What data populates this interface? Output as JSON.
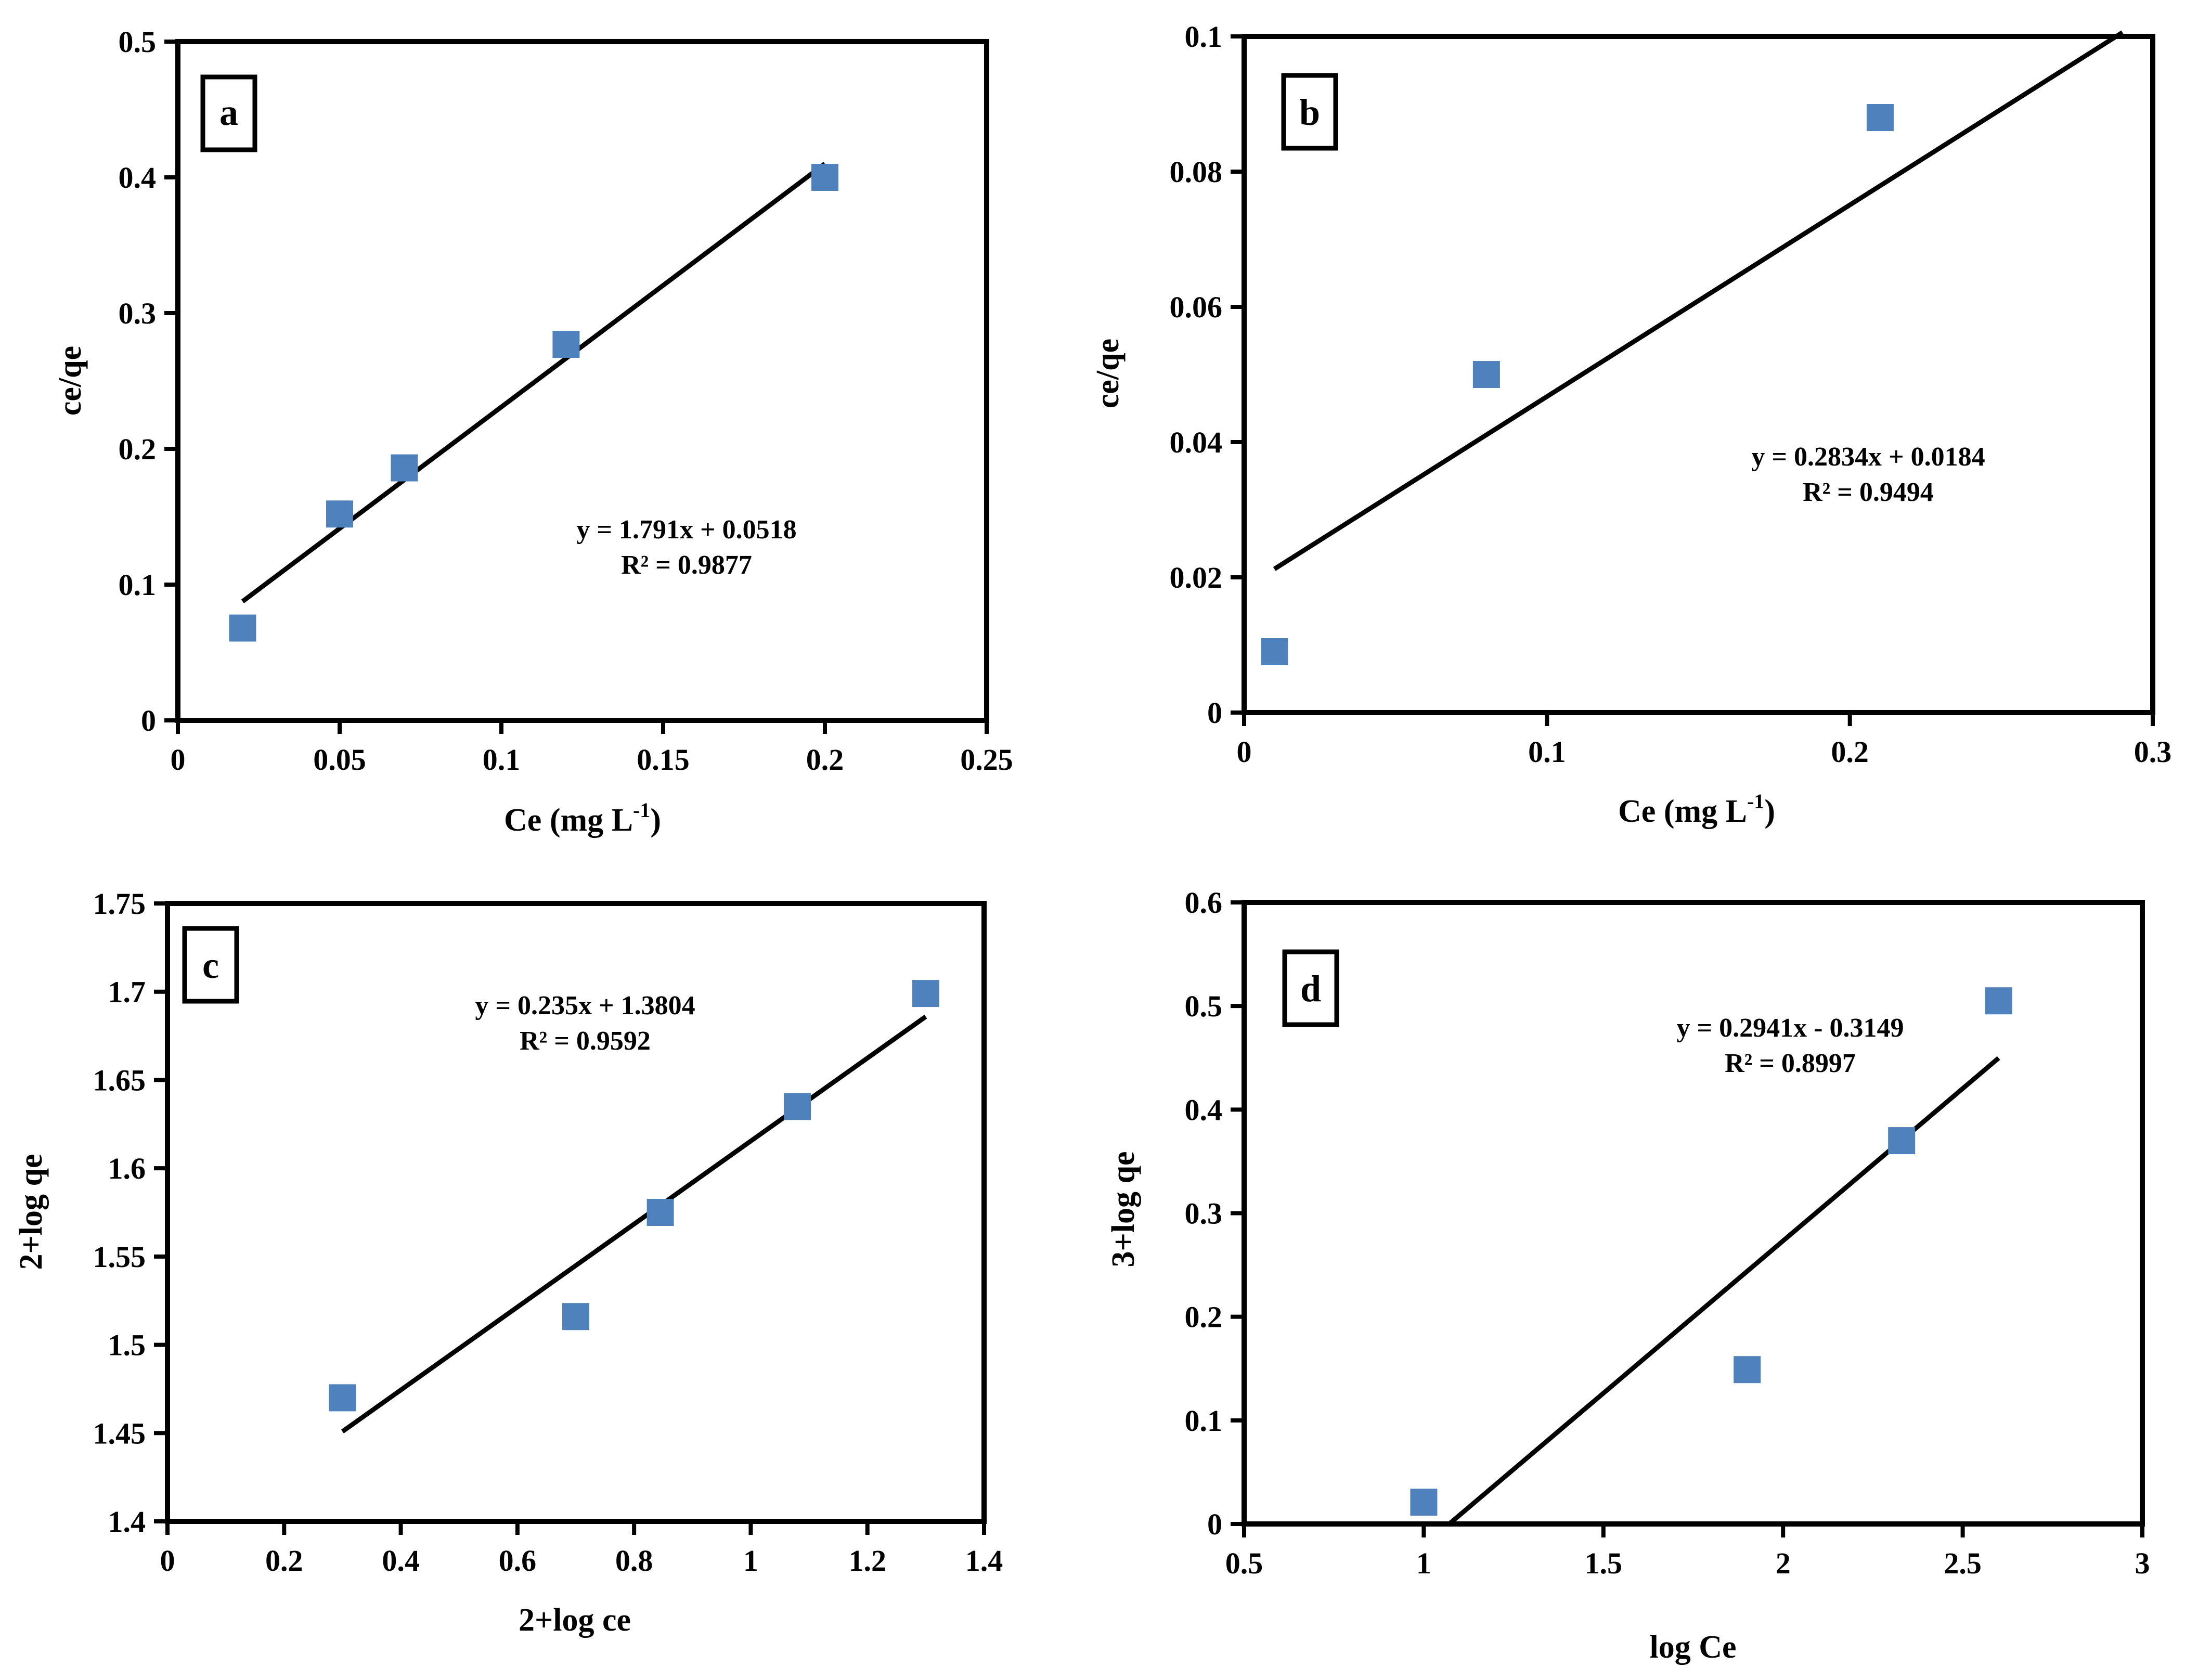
{
  "colors": {
    "marker": "#4F81BD",
    "line": "#000000",
    "axes": "#000000"
  },
  "chart_data": [
    {
      "type": "scatter",
      "panel": "a",
      "x": [
        0.02,
        0.05,
        0.07,
        0.12,
        0.2
      ],
      "y": [
        0.068,
        0.152,
        0.186,
        0.277,
        0.4
      ],
      "trendline": {
        "slope": 1.791,
        "intercept": 0.0518,
        "x_start": 0.02,
        "x_end": 0.2
      },
      "equation": "y = 1.791x + 0.0518",
      "r2": "R² = 0.9877",
      "xlabel": "Ce (mg L",
      "xlabel_sup": "-1",
      "xlabel_tail": ")",
      "ylabel": "ce/qe",
      "xlim": [
        0,
        0.25
      ],
      "ylim": [
        0,
        0.5
      ],
      "xticks": [
        0,
        0.05,
        0.1,
        0.15,
        0.2,
        0.25
      ],
      "xtick_labels": [
        "0",
        "0.05",
        "0.1",
        "0.15",
        "0.2",
        "0.25"
      ],
      "yticks": [
        0,
        0.1,
        0.2,
        0.3,
        0.4,
        0.5
      ],
      "ytick_labels": [
        "0",
        "0.1",
        "0.2",
        "0.3",
        "0.4",
        "0.5"
      ]
    },
    {
      "type": "scatter",
      "panel": "b",
      "x": [
        0.01,
        0.08,
        0.21
      ],
      "y": [
        0.009,
        0.05,
        0.088
      ],
      "trendline": {
        "slope": 0.2834,
        "intercept": 0.0184,
        "x_start": 0.01,
        "x_end": 0.29
      },
      "equation": "y = 0.2834x + 0.0184",
      "r2": "R² = 0.9494",
      "xlabel": "Ce (mg L",
      "xlabel_sup": "-1",
      "xlabel_tail": ")",
      "ylabel": "ce/qe",
      "xlim": [
        0,
        0.3
      ],
      "ylim": [
        0,
        0.1
      ],
      "xticks": [
        0,
        0.1,
        0.2,
        0.3
      ],
      "xtick_labels": [
        "0",
        "0.1",
        "0.2",
        "0.3"
      ],
      "yticks": [
        0,
        0.02,
        0.04,
        0.06,
        0.08,
        0.1
      ],
      "ytick_labels": [
        "0",
        "0.02",
        "0.04",
        "0.06",
        "0.08",
        "0.1"
      ]
    },
    {
      "type": "scatter",
      "panel": "c",
      "x": [
        0.3,
        0.7,
        0.845,
        1.08,
        1.3
      ],
      "y": [
        1.47,
        1.516,
        1.575,
        1.635,
        1.699
      ],
      "trendline": {
        "slope": 0.235,
        "intercept": 1.3804,
        "x_start": 0.3,
        "x_end": 1.3
      },
      "equation": "y = 0.235x + 1.3804",
      "r2": "R² = 0.9592",
      "xlabel": "2+log ce",
      "xlabel_sup": "",
      "xlabel_tail": "",
      "ylabel": "2+log qe",
      "xlim": [
        0,
        1.4
      ],
      "ylim": [
        1.4,
        1.75
      ],
      "xticks": [
        0,
        0.2,
        0.4,
        0.6,
        0.8,
        1,
        1.2,
        1.4
      ],
      "xtick_labels": [
        "0",
        "0.2",
        "0.4",
        "0.6",
        "0.8",
        "1",
        "1.2",
        "1.4"
      ],
      "yticks": [
        1.4,
        1.45,
        1.5,
        1.55,
        1.6,
        1.65,
        1.7,
        1.75
      ],
      "ytick_labels": [
        "1.4",
        "1.45",
        "1.5",
        "1.55",
        "1.6",
        "1.65",
        "1.7",
        "1.75"
      ]
    },
    {
      "type": "scatter",
      "panel": "d",
      "x": [
        1.0,
        1.9,
        2.33,
        2.6
      ],
      "y": [
        0.021,
        0.149,
        0.37,
        0.505
      ],
      "trendline": {
        "slope": 0.2941,
        "intercept": -0.3149,
        "x_start": 1.071,
        "x_end": 2.6
      },
      "equation": "y = 0.2941x - 0.3149",
      "r2": "R² = 0.8997",
      "xlabel": "log Ce",
      "xlabel_sup": "",
      "xlabel_tail": "",
      "ylabel": "3+log qe",
      "xlim": [
        0.5,
        3
      ],
      "ylim": [
        0,
        0.6
      ],
      "xticks": [
        0.5,
        1,
        1.5,
        2,
        2.5,
        3
      ],
      "xtick_labels": [
        "0.5",
        "1",
        "1.5",
        "2",
        "2.5",
        "3"
      ],
      "yticks": [
        0,
        0.1,
        0.2,
        0.3,
        0.4,
        0.5,
        0.6
      ],
      "ytick_labels": [
        "0",
        "0.1",
        "0.2",
        "0.3",
        "0.4",
        "0.5",
        "0.6"
      ]
    }
  ]
}
